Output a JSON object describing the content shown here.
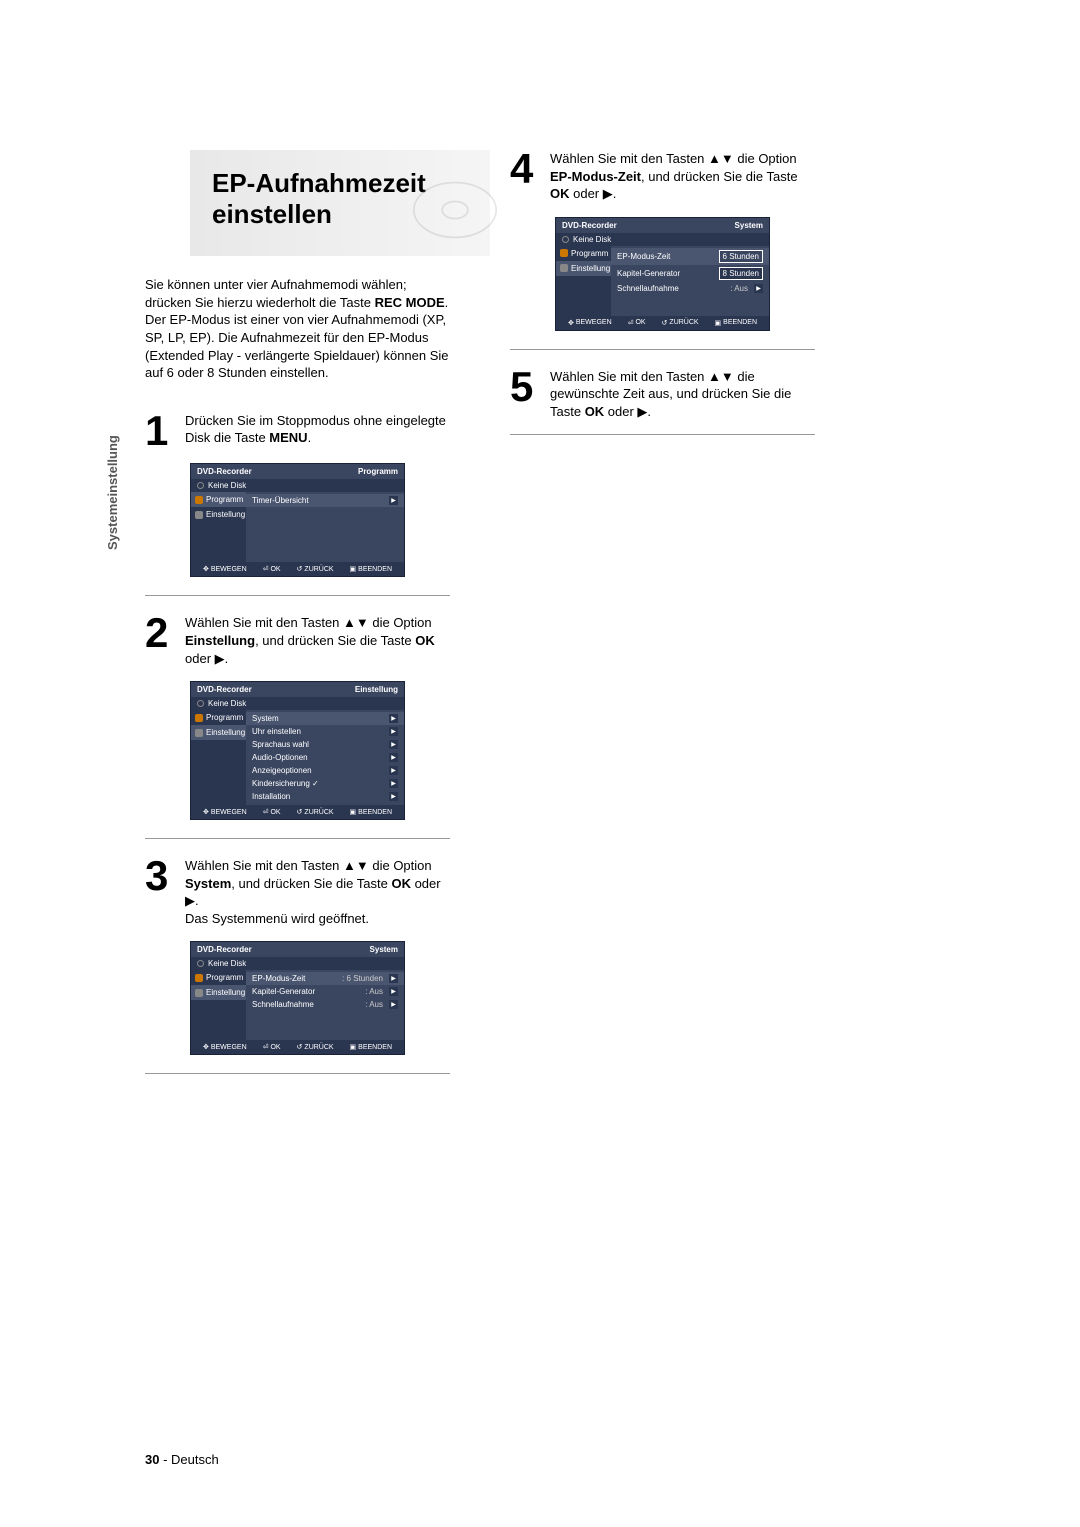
{
  "sideLabel": "Systemeinstellung",
  "title": "EP-Aufnahmezeit einstellen",
  "intro": "Sie können unter vier Aufnahmemodi wählen; drücken Sie hierzu wiederholt die Taste <b>REC MODE</b>. Der EP-Modus ist einer von vier Aufnahmemodi (XP, SP, LP, EP). Die Aufnahmezeit für den EP-Modus (Extended Play - verlängerte Spieldauer) können Sie auf 6 oder 8 Stunden einstellen.",
  "steps": {
    "s1": {
      "num": "1",
      "text": "Drücken Sie im Stoppmodus ohne eingelegte Disk die Taste <b>MENU</b>."
    },
    "s2": {
      "num": "2",
      "text": "Wählen Sie mit den Tasten ▲▼ die Option <b>Einstellung</b>, und drücken Sie die Taste <b>OK</b> oder ▶."
    },
    "s3": {
      "num": "3",
      "text": "Wählen Sie mit den Tasten ▲▼ die Option <b>System</b>, und drücken Sie die Taste <b>OK</b> oder ▶.<br>Das Systemmenü wird geöffnet."
    },
    "s4": {
      "num": "4",
      "text": "Wählen Sie mit den Tasten ▲▼ die Option <b>EP-Modus-Zeit</b>, und drücken Sie die Taste <b>OK</b> oder ▶."
    },
    "s5": {
      "num": "5",
      "text": "Wählen Sie mit den Tasten ▲▼ die gewünschte Zeit aus, und drücken Sie die Taste <b>OK</b> oder ▶."
    }
  },
  "osd": {
    "recorder": "DVD-Recorder",
    "noDisk": "Keine Disk",
    "programm": "Programm",
    "einstellung": "Einstellung",
    "system": "System",
    "sideProg": "Programm",
    "sideEinst": "Einstellung",
    "timerUebersicht": "Timer-Übersicht",
    "menu2": [
      "System",
      "Uhr einstellen",
      "Sprachaus wahl",
      "Audio-Optionen",
      "Anzeigeoptionen",
      "Kindersicherung ✓",
      "Installation"
    ],
    "menu3": [
      {
        "l": "EP-Modus-Zeit",
        "v": ": 6 Stunden"
      },
      {
        "l": "Kapitel-Generator",
        "v": ": Aus"
      },
      {
        "l": "Schnellaufnahme",
        "v": ": Aus"
      }
    ],
    "menu4": {
      "epLabel": "EP-Modus-Zeit",
      "kapitel": "Kapitel-Generator",
      "schnell": "Schnellaufnahme",
      "schnellVal": ": Aus",
      "opt1": "6 Stunden",
      "opt2": "8 Stunden"
    },
    "footer": {
      "bewegen": "BEWEGEN",
      "ok": "OK",
      "zurueck": "ZURÜCK",
      "beenden": "BEENDEN"
    }
  },
  "pageNum": {
    "num": "30",
    "lang": "- Deutsch"
  }
}
